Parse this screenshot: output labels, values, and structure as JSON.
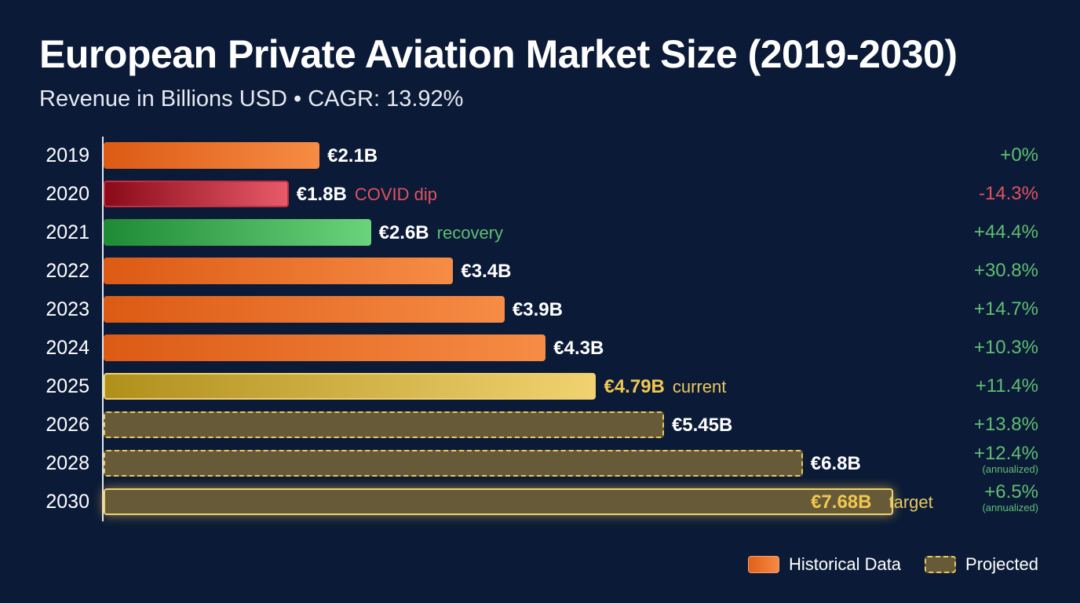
{
  "chart_data": {
    "type": "bar",
    "orientation": "horizontal",
    "title": "European Private Aviation Market Size (2019-2030)",
    "subtitle": "Revenue in Billions USD • CAGR: 13.92%",
    "categories": [
      "2019",
      "2020",
      "2021",
      "2022",
      "2023",
      "2024",
      "2025",
      "2026",
      "2028",
      "2030"
    ],
    "values": [
      2.1,
      1.8,
      2.6,
      3.4,
      3.9,
      4.3,
      4.79,
      5.45,
      6.8,
      7.68
    ],
    "value_labels": [
      "€2.1B",
      "€1.8B",
      "€2.6B",
      "€3.4B",
      "€3.9B",
      "€4.3B",
      "€4.79B",
      "€5.45B",
      "€6.8B",
      "€7.68B"
    ],
    "notes": [
      "",
      "COVID dip",
      "recovery",
      "",
      "",
      "",
      "current",
      "",
      "",
      "target"
    ],
    "growth": [
      "+0%",
      "-14.3%",
      "+44.4%",
      "+30.8%",
      "+14.7%",
      "+10.3%",
      "+11.4%",
      "+13.8%",
      "+12.4%",
      "+6.5%"
    ],
    "growth_notes": [
      "",
      "",
      "",
      "",
      "",
      "",
      "",
      "",
      "(annualized)",
      "(annualized)"
    ],
    "kinds": [
      "historical",
      "dip",
      "recovery",
      "historical",
      "historical",
      "historical",
      "current",
      "projected",
      "projected",
      "target"
    ],
    "xlim": [
      0,
      7.68
    ],
    "grid": false,
    "legend": {
      "position": "bottom-right",
      "items": [
        {
          "label": "Historical Data",
          "kind": "historical"
        },
        {
          "label": "Projected",
          "kind": "projected"
        }
      ]
    },
    "colors": {
      "historical": "#f0782e",
      "dip": "#d94a5a",
      "recovery": "#4cc463",
      "current": "#e0c050",
      "projected": "#665a38",
      "positive": "#5fbf72",
      "negative": "#e05260",
      "background": "#0b1a37"
    }
  }
}
